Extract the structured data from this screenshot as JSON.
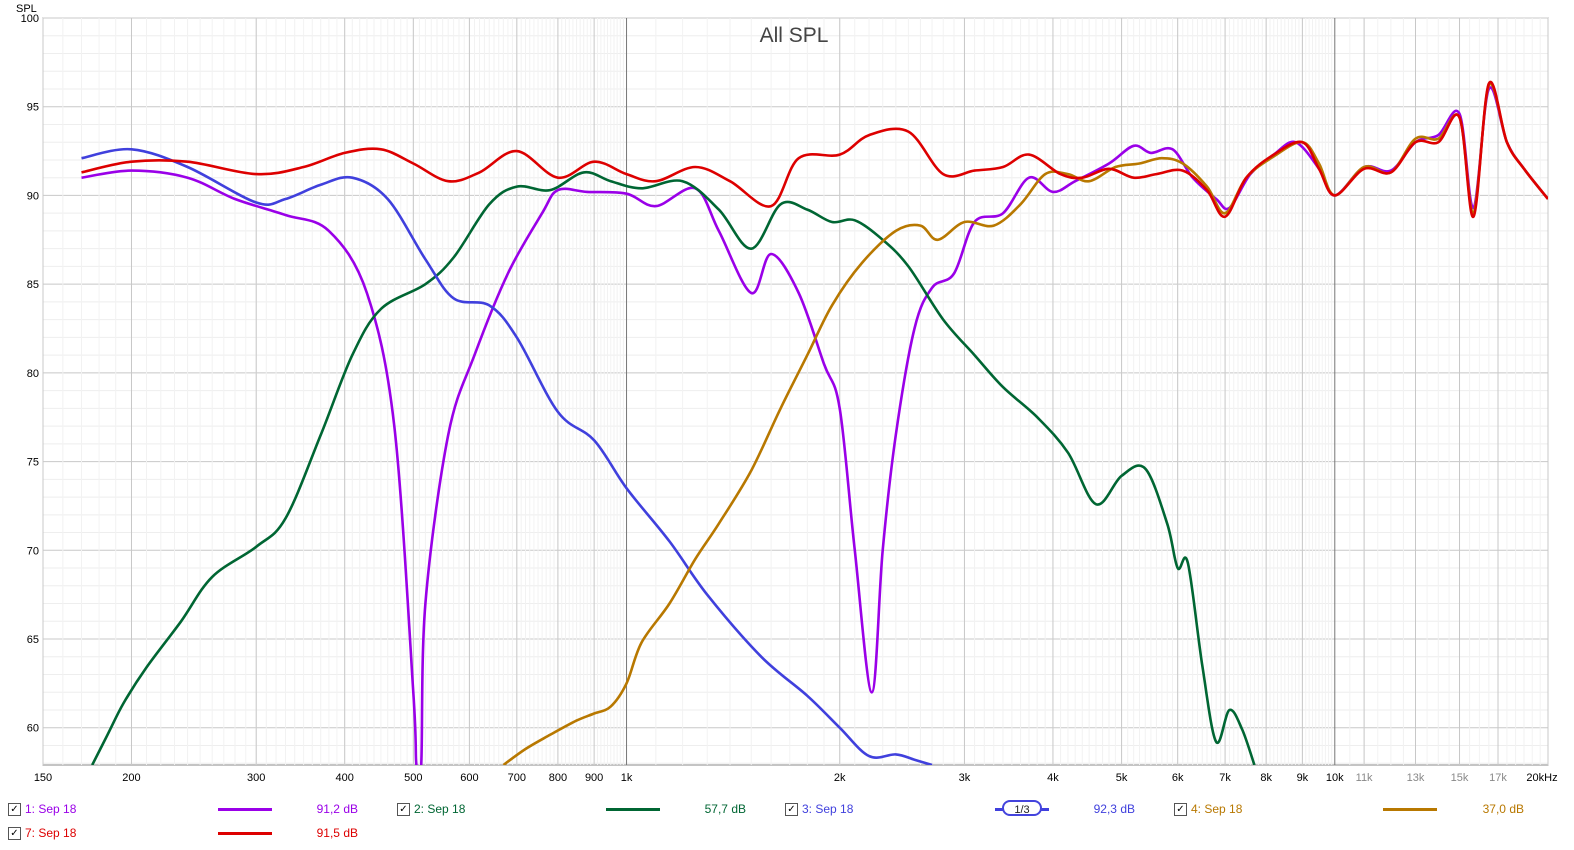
{
  "chart_data": {
    "type": "line",
    "title": "All SPL",
    "ylabel": "SPL",
    "xlabel": "",
    "xscale": "log",
    "xlim": [
      150,
      20000
    ],
    "ylim": [
      57.9,
      100
    ],
    "y_ticks": [
      {
        "v": 100,
        "label": "100"
      },
      {
        "v": 95,
        "label": "95"
      },
      {
        "v": 90,
        "label": "90"
      },
      {
        "v": 85,
        "label": "85"
      },
      {
        "v": 80,
        "label": "80"
      },
      {
        "v": 75,
        "label": "75"
      },
      {
        "v": 70,
        "label": "70"
      },
      {
        "v": 65,
        "label": "65"
      },
      {
        "v": 60,
        "label": "60"
      }
    ],
    "x_ticks": [
      {
        "v": 150,
        "label": "150",
        "dark": true
      },
      {
        "v": 200,
        "label": "200",
        "dark": true
      },
      {
        "v": 300,
        "label": "300",
        "dark": true
      },
      {
        "v": 400,
        "label": "400",
        "dark": true
      },
      {
        "v": 500,
        "label": "500",
        "dark": true
      },
      {
        "v": 600,
        "label": "600",
        "dark": true
      },
      {
        "v": 700,
        "label": "700",
        "dark": true
      },
      {
        "v": 800,
        "label": "800",
        "dark": true
      },
      {
        "v": 900,
        "label": "900",
        "dark": true
      },
      {
        "v": 1000,
        "label": "1k",
        "dark": true
      },
      {
        "v": 2000,
        "label": "2k",
        "dark": true
      },
      {
        "v": 3000,
        "label": "3k",
        "dark": true
      },
      {
        "v": 4000,
        "label": "4k",
        "dark": true
      },
      {
        "v": 5000,
        "label": "5k",
        "dark": true
      },
      {
        "v": 6000,
        "label": "6k",
        "dark": true
      },
      {
        "v": 7000,
        "label": "7k",
        "dark": true
      },
      {
        "v": 8000,
        "label": "8k",
        "dark": true
      },
      {
        "v": 9000,
        "label": "9k",
        "dark": true
      },
      {
        "v": 10000,
        "label": "10k",
        "dark": true
      },
      {
        "v": 11000,
        "label": "11k",
        "dark": false
      },
      {
        "v": 13000,
        "label": "13k",
        "dark": false
      },
      {
        "v": 15000,
        "label": "15k",
        "dark": false
      },
      {
        "v": 17000,
        "label": "17k",
        "dark": false
      },
      {
        "v": 20000,
        "label": "20kHz",
        "dark": true
      }
    ],
    "series": [
      {
        "name": "1: Sep 18",
        "color": "#9a00e8",
        "points": [
          [
            170,
            91.0
          ],
          [
            200,
            91.4
          ],
          [
            240,
            91.0
          ],
          [
            280,
            89.8
          ],
          [
            330,
            88.9
          ],
          [
            380,
            88.0
          ],
          [
            430,
            84.5
          ],
          [
            470,
            77
          ],
          [
            500,
            62
          ],
          [
            505,
            57.9
          ],
          [
            513,
            57.9
          ],
          [
            520,
            67
          ],
          [
            560,
            76.5
          ],
          [
            610,
            81
          ],
          [
            680,
            85.6
          ],
          [
            760,
            89.0
          ],
          [
            800,
            90.3
          ],
          [
            880,
            90.2
          ],
          [
            1000,
            90.1
          ],
          [
            1100,
            89.4
          ],
          [
            1250,
            90.4
          ],
          [
            1350,
            88.0
          ],
          [
            1500,
            84.5
          ],
          [
            1600,
            86.7
          ],
          [
            1750,
            84.5
          ],
          [
            1900,
            80.5
          ],
          [
            2000,
            78
          ],
          [
            2100,
            70
          ],
          [
            2220,
            62.0
          ],
          [
            2300,
            70
          ],
          [
            2400,
            76.5
          ],
          [
            2550,
            82.5
          ],
          [
            2700,
            84.8
          ],
          [
            2900,
            85.6
          ],
          [
            3100,
            88.5
          ],
          [
            3400,
            89.0
          ],
          [
            3700,
            91.0
          ],
          [
            4000,
            90.2
          ],
          [
            4300,
            90.8
          ],
          [
            4800,
            91.8
          ],
          [
            5200,
            92.8
          ],
          [
            5500,
            92.4
          ],
          [
            5900,
            92.6
          ],
          [
            6300,
            91.0
          ],
          [
            6800,
            89.8
          ],
          [
            7100,
            89.3
          ],
          [
            7600,
            91.2
          ],
          [
            8200,
            92.3
          ],
          [
            8800,
            93.0
          ],
          [
            9500,
            91.5
          ],
          [
            10000,
            90.0
          ],
          [
            11000,
            91.6
          ],
          [
            12000,
            91.4
          ],
          [
            13000,
            93.0
          ],
          [
            14000,
            93.4
          ],
          [
            15000,
            94.6
          ],
          [
            15700,
            89.3
          ],
          [
            16500,
            96.0
          ],
          [
            17500,
            93.0
          ],
          [
            18500,
            91.5
          ],
          [
            20000,
            89.8
          ]
        ]
      },
      {
        "name": "2: Sep 18",
        "color": "#006633",
        "points": [
          [
            176,
            57.9
          ],
          [
            185,
            59.6
          ],
          [
            195,
            61.4
          ],
          [
            210,
            63.4
          ],
          [
            235,
            66.0
          ],
          [
            260,
            68.5
          ],
          [
            300,
            70.2
          ],
          [
            330,
            71.8
          ],
          [
            370,
            76.5
          ],
          [
            410,
            81.0
          ],
          [
            450,
            83.6
          ],
          [
            520,
            85.0
          ],
          [
            570,
            86.5
          ],
          [
            640,
            89.5
          ],
          [
            700,
            90.5
          ],
          [
            780,
            90.3
          ],
          [
            870,
            91.3
          ],
          [
            950,
            90.8
          ],
          [
            1050,
            90.4
          ],
          [
            1200,
            90.8
          ],
          [
            1350,
            89.2
          ],
          [
            1500,
            87.0
          ],
          [
            1650,
            89.5
          ],
          [
            1800,
            89.2
          ],
          [
            1950,
            88.5
          ],
          [
            2100,
            88.6
          ],
          [
            2300,
            87.5
          ],
          [
            2500,
            86.0
          ],
          [
            2800,
            83.0
          ],
          [
            3100,
            81.0
          ],
          [
            3400,
            79.2
          ],
          [
            3800,
            77.5
          ],
          [
            4200,
            75.5
          ],
          [
            4600,
            72.6
          ],
          [
            5000,
            74.2
          ],
          [
            5400,
            74.6
          ],
          [
            5800,
            71.5
          ],
          [
            6000,
            69.0
          ],
          [
            6200,
            69.3
          ],
          [
            6500,
            63.5
          ],
          [
            6800,
            59.2
          ],
          [
            7100,
            61.0
          ],
          [
            7400,
            59.9
          ],
          [
            7700,
            57.9
          ]
        ]
      },
      {
        "name": "3: Sep 18",
        "color": "#4040dd",
        "points": [
          [
            170,
            92.1
          ],
          [
            200,
            92.6
          ],
          [
            240,
            91.6
          ],
          [
            300,
            89.6
          ],
          [
            330,
            89.8
          ],
          [
            370,
            90.6
          ],
          [
            410,
            91.0
          ],
          [
            460,
            89.8
          ],
          [
            520,
            86.4
          ],
          [
            570,
            84.2
          ],
          [
            640,
            83.8
          ],
          [
            700,
            82.0
          ],
          [
            800,
            77.8
          ],
          [
            900,
            76.2
          ],
          [
            1000,
            73.5
          ],
          [
            1150,
            70.5
          ],
          [
            1300,
            67.5
          ],
          [
            1550,
            64.0
          ],
          [
            1800,
            61.8
          ],
          [
            2000,
            60.0
          ],
          [
            2200,
            58.4
          ],
          [
            2400,
            58.5
          ],
          [
            2550,
            58.2
          ],
          [
            2700,
            57.9
          ]
        ]
      },
      {
        "name": "4: Sep 18",
        "color": "#b87800",
        "points": [
          [
            670,
            57.9
          ],
          [
            720,
            58.8
          ],
          [
            780,
            59.6
          ],
          [
            850,
            60.4
          ],
          [
            900,
            60.8
          ],
          [
            950,
            61.2
          ],
          [
            1000,
            62.5
          ],
          [
            1050,
            64.8
          ],
          [
            1150,
            67.0
          ],
          [
            1250,
            69.5
          ],
          [
            1350,
            71.5
          ],
          [
            1500,
            74.5
          ],
          [
            1650,
            78.0
          ],
          [
            1800,
            81.0
          ],
          [
            1950,
            83.8
          ],
          [
            2150,
            86.2
          ],
          [
            2400,
            88.0
          ],
          [
            2600,
            88.3
          ],
          [
            2750,
            87.5
          ],
          [
            3000,
            88.5
          ],
          [
            3300,
            88.3
          ],
          [
            3600,
            89.5
          ],
          [
            3900,
            91.2
          ],
          [
            4200,
            91.2
          ],
          [
            4500,
            90.8
          ],
          [
            4900,
            91.6
          ],
          [
            5300,
            91.8
          ],
          [
            5700,
            92.1
          ],
          [
            6100,
            91.8
          ],
          [
            6600,
            90.5
          ],
          [
            7000,
            89.0
          ],
          [
            7500,
            91.0
          ],
          [
            8200,
            92.2
          ],
          [
            9000,
            93.0
          ],
          [
            9500,
            91.8
          ],
          [
            10000,
            90.0
          ],
          [
            11000,
            91.6
          ],
          [
            12000,
            91.3
          ],
          [
            13000,
            93.2
          ],
          [
            14000,
            93.2
          ],
          [
            15000,
            94.4
          ],
          [
            15700,
            89.0
          ],
          [
            16500,
            96.2
          ],
          [
            17500,
            93.0
          ],
          [
            18500,
            91.5
          ],
          [
            20000,
            89.8
          ]
        ]
      },
      {
        "name": "7: Sep 18",
        "color": "#dd0000",
        "points": [
          [
            170,
            91.3
          ],
          [
            200,
            91.9
          ],
          [
            240,
            91.9
          ],
          [
            300,
            91.2
          ],
          [
            350,
            91.6
          ],
          [
            400,
            92.4
          ],
          [
            450,
            92.6
          ],
          [
            500,
            91.8
          ],
          [
            560,
            90.8
          ],
          [
            620,
            91.3
          ],
          [
            700,
            92.5
          ],
          [
            800,
            91.0
          ],
          [
            900,
            91.9
          ],
          [
            1000,
            91.2
          ],
          [
            1100,
            90.8
          ],
          [
            1250,
            91.6
          ],
          [
            1400,
            90.8
          ],
          [
            1600,
            89.4
          ],
          [
            1750,
            92.1
          ],
          [
            2000,
            92.3
          ],
          [
            2200,
            93.4
          ],
          [
            2500,
            93.6
          ],
          [
            2800,
            91.2
          ],
          [
            3100,
            91.4
          ],
          [
            3400,
            91.6
          ],
          [
            3700,
            92.3
          ],
          [
            4100,
            91.2
          ],
          [
            4400,
            91.0
          ],
          [
            4800,
            91.5
          ],
          [
            5200,
            91.0
          ],
          [
            5600,
            91.2
          ],
          [
            6100,
            91.4
          ],
          [
            6600,
            90.3
          ],
          [
            7000,
            88.8
          ],
          [
            7500,
            91.0
          ],
          [
            8200,
            92.3
          ],
          [
            9000,
            93.0
          ],
          [
            9500,
            91.5
          ],
          [
            10000,
            90.0
          ],
          [
            11000,
            91.5
          ],
          [
            12000,
            91.3
          ],
          [
            13000,
            93.0
          ],
          [
            14000,
            93.0
          ],
          [
            15000,
            94.4
          ],
          [
            15700,
            88.8
          ],
          [
            16500,
            96.3
          ],
          [
            17500,
            93.0
          ],
          [
            18500,
            91.5
          ],
          [
            20000,
            89.8
          ]
        ]
      }
    ]
  },
  "legend": {
    "items": [
      {
        "label": "1: Sep 18",
        "value": "91,2 dB",
        "color": "#9a00e8",
        "checked": true,
        "smoothing": ""
      },
      {
        "label": "2: Sep 18",
        "value": "57,7 dB",
        "color": "#006633",
        "checked": true,
        "smoothing": ""
      },
      {
        "label": "3: Sep 18",
        "value": "92,3 dB",
        "color": "#4040dd",
        "checked": true,
        "smoothing": "1/3"
      },
      {
        "label": "4: Sep 18",
        "value": "37,0 dB",
        "color": "#b87800",
        "checked": true,
        "smoothing": ""
      },
      {
        "label": "7: Sep 18",
        "value": "91,5 dB",
        "color": "#dd0000",
        "checked": true,
        "smoothing": ""
      }
    ],
    "check_glyph": "✓"
  }
}
